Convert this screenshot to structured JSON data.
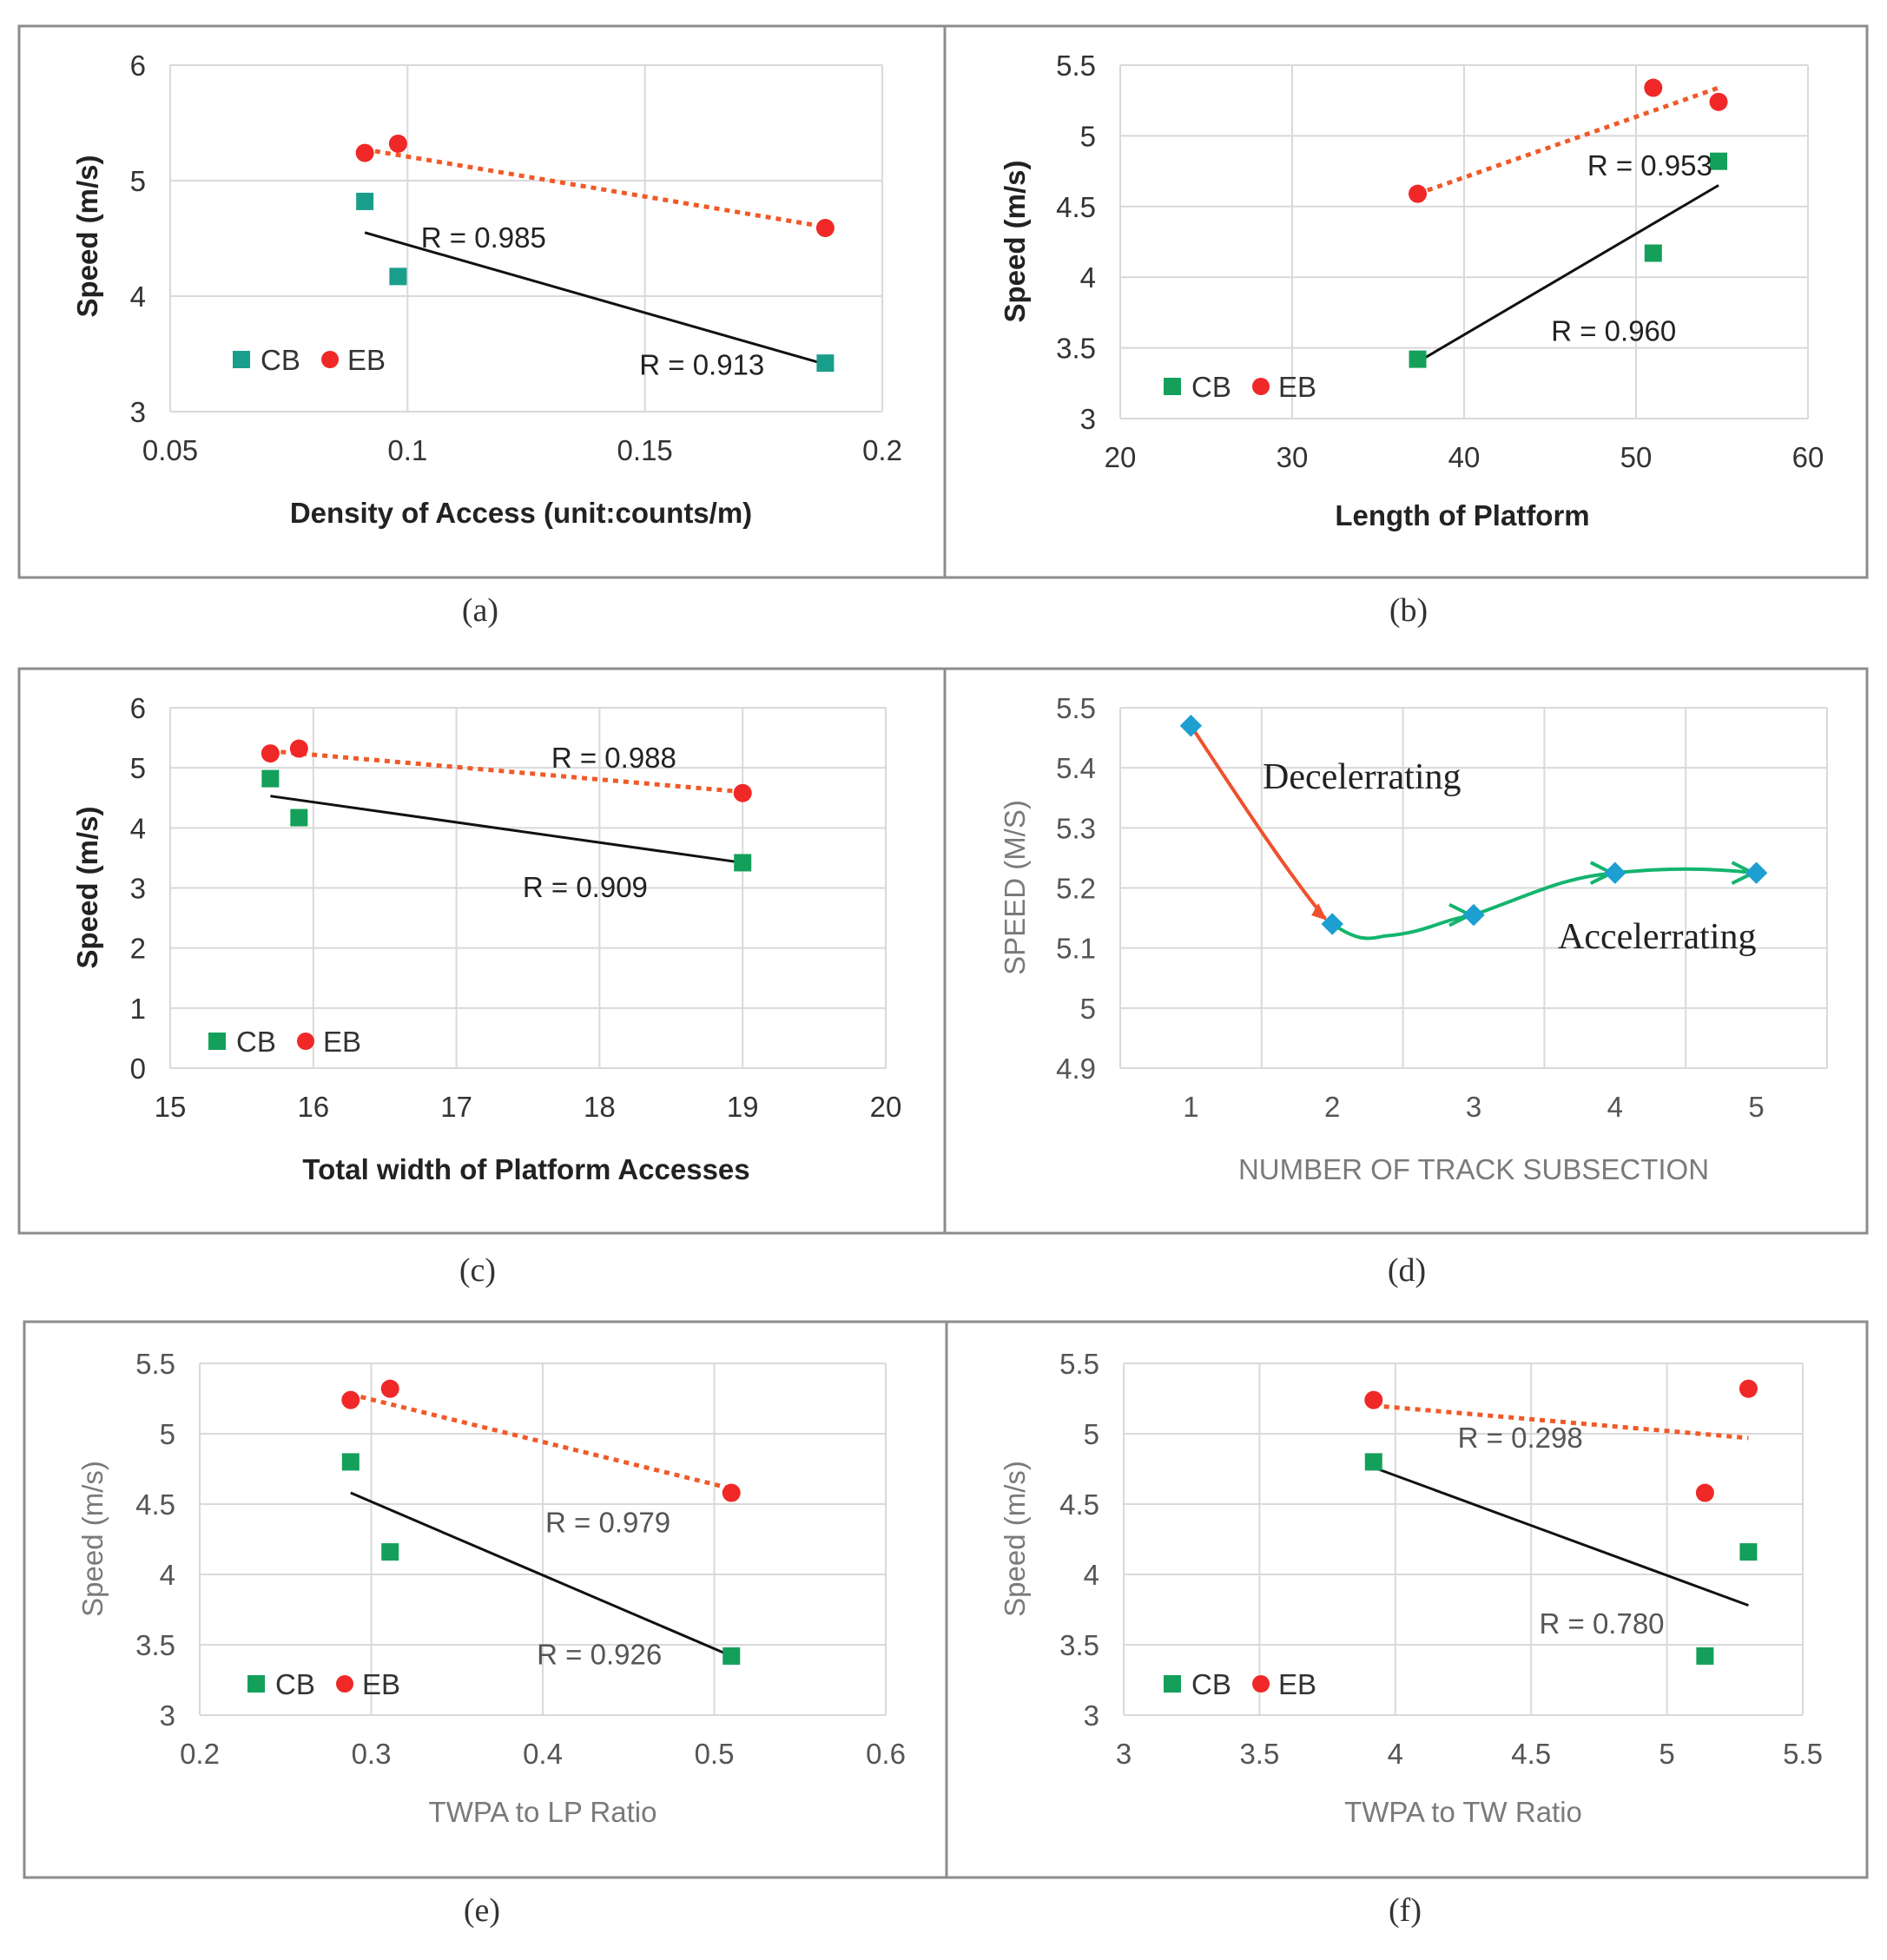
{
  "colors": {
    "cb": "#14a05a",
    "cb_a": "#1a9e8c",
    "eb": "#f02828",
    "trend_cb": "#111111",
    "trend_eb": "#f05a28",
    "decel": "#f0502d",
    "accel": "#14b46e",
    "diamond": "#1e9fd2"
  },
  "chart_data": [
    {
      "id": "a",
      "type": "scatter",
      "caption": "(a)",
      "xlabel": "Density of Access  (unit:counts/m)",
      "ylabel": "Speed (m/s)",
      "xlim": [
        0.05,
        0.2
      ],
      "ylim": [
        3,
        6
      ],
      "xticks": [
        "0.05",
        "0.1",
        "0.15",
        "0.2"
      ],
      "yticks": [
        "3",
        "4",
        "5",
        "6"
      ],
      "legend": [
        "CB",
        "EB"
      ],
      "series": [
        {
          "name": "CB",
          "x": [
            0.091,
            0.098,
            0.188
          ],
          "y": [
            4.82,
            4.17,
            3.42
          ],
          "trend": {
            "x": [
              0.091,
              0.188
            ],
            "y": [
              4.55,
              3.41
            ]
          }
        },
        {
          "name": "EB",
          "x": [
            0.091,
            0.098,
            0.188
          ],
          "y": [
            5.24,
            5.32,
            4.59
          ],
          "trend": {
            "x": [
              0.091,
              0.188
            ],
            "y": [
              5.27,
              4.6
            ]
          }
        }
      ],
      "annotations": [
        {
          "text": "R = 0.985",
          "x": 0.116,
          "y": 4.42,
          "anchor": "middle"
        },
        {
          "text": "R = 0.913",
          "x": 0.162,
          "y": 3.32,
          "anchor": "middle"
        }
      ]
    },
    {
      "id": "b",
      "type": "scatter",
      "caption": "(b)",
      "xlabel": "Length of Platform",
      "ylabel": "Speed (m/s)",
      "xlim": [
        20,
        60
      ],
      "ylim": [
        3,
        5.5
      ],
      "xticks": [
        "20",
        "30",
        "40",
        "50",
        "60"
      ],
      "yticks": [
        "3",
        "3.5",
        "4",
        "4.5",
        "5",
        "5.5"
      ],
      "legend": [
        "CB",
        "EB"
      ],
      "series": [
        {
          "name": "CB",
          "x": [
            37.3,
            51.0,
            54.8
          ],
          "y": [
            3.42,
            4.17,
            4.82
          ],
          "trend": {
            "x": [
              37.3,
              54.8
            ],
            "y": [
              3.4,
              4.65
            ]
          }
        },
        {
          "name": "EB",
          "x": [
            37.3,
            51.0,
            54.8
          ],
          "y": [
            4.59,
            5.34,
            5.24
          ],
          "trend": {
            "x": [
              37.3,
              54.8
            ],
            "y": [
              4.59,
              5.34
            ]
          }
        }
      ],
      "annotations": [
        {
          "text": "R = 0.953",
          "x": 50.8,
          "y": 4.72,
          "anchor": "middle"
        },
        {
          "text": "R = 0.960",
          "x": 48.7,
          "y": 3.55,
          "anchor": "middle"
        }
      ]
    },
    {
      "id": "c",
      "type": "scatter",
      "caption": "(c)",
      "xlabel": "Total width of Platform Accesses",
      "ylabel": "Speed (m/s)",
      "xlim": [
        15,
        20
      ],
      "ylim": [
        0,
        6
      ],
      "xticks": [
        "15",
        "16",
        "17",
        "18",
        "19",
        "20"
      ],
      "yticks": [
        "0",
        "1",
        "2",
        "3",
        "4",
        "5",
        "6"
      ],
      "legend": [
        "CB",
        "EB"
      ],
      "series": [
        {
          "name": "CB",
          "x": [
            15.7,
            15.9,
            19.0
          ],
          "y": [
            4.82,
            4.17,
            3.42
          ],
          "trend": {
            "x": [
              15.7,
              19.0
            ],
            "y": [
              4.53,
              3.42
            ]
          }
        },
        {
          "name": "EB",
          "x": [
            15.7,
            15.9,
            19.0
          ],
          "y": [
            5.24,
            5.32,
            4.58
          ],
          "trend": {
            "x": [
              15.7,
              19.0
            ],
            "y": [
              5.28,
              4.6
            ]
          }
        }
      ],
      "annotations": [
        {
          "text": "R = 0.988",
          "x": 18.1,
          "y": 5.0,
          "anchor": "middle"
        },
        {
          "text": "R = 0.909",
          "x": 17.9,
          "y": 2.85,
          "anchor": "middle"
        }
      ]
    },
    {
      "id": "d",
      "type": "line",
      "caption": "(d)",
      "xlabel": "NUMBER  OF TRACK SUBSECTION",
      "ylabel": "SPEED (M/S)",
      "xlim": [
        0.5,
        5.5
      ],
      "ylim": [
        4.9,
        5.5
      ],
      "xticks": [
        "1",
        "2",
        "3",
        "4",
        "5"
      ],
      "yticks": [
        "4.9",
        "5",
        "5.1",
        "5.2",
        "5.3",
        "5.4",
        "5.5"
      ],
      "x": [
        1,
        2,
        3,
        4,
        5
      ],
      "y": [
        5.47,
        5.14,
        5.155,
        5.225,
        5.225
      ],
      "segments": [
        {
          "label": "Decelerrating",
          "from": 1,
          "to": 2
        },
        {
          "label": "Accelerrating",
          "from": 2,
          "to": 5
        }
      ]
    },
    {
      "id": "e",
      "type": "scatter",
      "caption": "(e)",
      "xlabel": "TWPA to LP Ratio",
      "ylabel": "Speed (m/s)",
      "xlim": [
        0.2,
        0.6
      ],
      "ylim": [
        3,
        5.5
      ],
      "xticks": [
        "0.2",
        "0.3",
        "0.4",
        "0.5",
        "0.6"
      ],
      "yticks": [
        "3",
        "3.5",
        "4",
        "4.5",
        "5",
        "5.5"
      ],
      "legend": [
        "CB",
        "EB"
      ],
      "series": [
        {
          "name": "CB",
          "x": [
            0.288,
            0.311,
            0.51
          ],
          "y": [
            4.8,
            4.16,
            3.42
          ],
          "trend": {
            "x": [
              0.288,
              0.51
            ],
            "y": [
              4.58,
              3.42
            ]
          }
        },
        {
          "name": "EB",
          "x": [
            0.288,
            0.311,
            0.51
          ],
          "y": [
            5.24,
            5.32,
            4.58
          ],
          "trend": {
            "x": [
              0.288,
              0.51
            ],
            "y": [
              5.28,
              4.61
            ]
          }
        }
      ],
      "annotations": [
        {
          "text": "R = 0.979",
          "x": 0.438,
          "y": 4.3,
          "anchor": "middle"
        },
        {
          "text": "R = 0.926",
          "x": 0.433,
          "y": 3.36,
          "anchor": "middle"
        }
      ]
    },
    {
      "id": "f",
      "type": "scatter",
      "caption": "(f)",
      "xlabel": "TWPA to TW Ratio",
      "ylabel": "Speed (m/s)",
      "xlim": [
        3,
        5.5
      ],
      "ylim": [
        3,
        5.5
      ],
      "xticks": [
        "3",
        "3.5",
        "4",
        "4.5",
        "5",
        "5.5"
      ],
      "yticks": [
        "3",
        "3.5",
        "4",
        "4.5",
        "5",
        "5.5"
      ],
      "legend": [
        "CB",
        "EB"
      ],
      "series": [
        {
          "name": "CB",
          "x": [
            3.92,
            5.14,
            5.3
          ],
          "y": [
            4.8,
            3.42,
            4.16
          ],
          "trend": {
            "x": [
              3.92,
              5.3
            ],
            "y": [
              4.76,
              3.78
            ]
          }
        },
        {
          "name": "EB",
          "x": [
            3.92,
            5.14,
            5.3
          ],
          "y": [
            5.24,
            4.58,
            5.32
          ],
          "trend": {
            "x": [
              3.92,
              5.3
            ],
            "y": [
              5.2,
              4.97
            ]
          }
        }
      ],
      "annotations": [
        {
          "text": "R = 0.298",
          "x": 4.46,
          "y": 4.9,
          "anchor": "middle"
        },
        {
          "text": "R = 0.780",
          "x": 4.76,
          "y": 3.58,
          "anchor": "middle"
        }
      ]
    }
  ]
}
